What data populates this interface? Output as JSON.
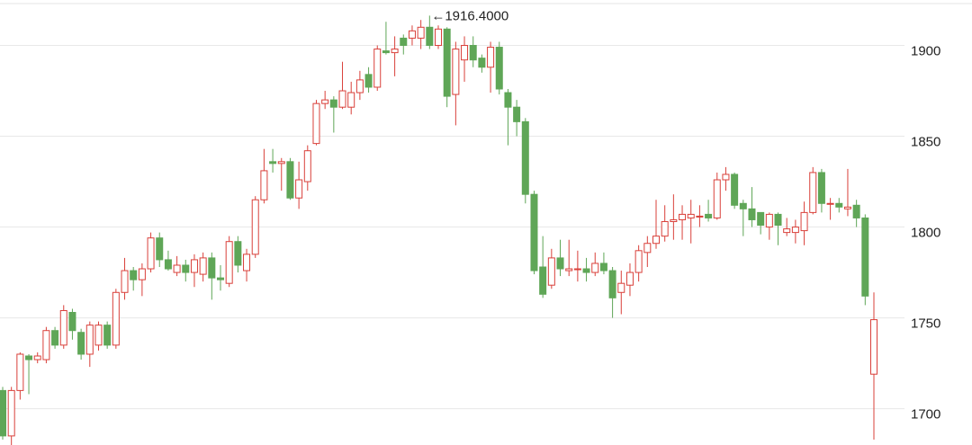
{
  "chart_data": {
    "type": "candlestick",
    "annotation": "←1916.4000",
    "up_color": "#d9403a",
    "down_color": "#5fa657",
    "ylim": [
      1680,
      1925
    ],
    "yticks": [
      1700,
      1750,
      1800,
      1850,
      1900
    ],
    "grid": true,
    "open": [
      1710,
      1685,
      1710,
      1729,
      1727,
      1727,
      1743,
      1735,
      1753,
      1742,
      1730,
      1735,
      1746,
      1735,
      1764,
      1776,
      1771,
      1777,
      1794,
      1782,
      1775,
      1779,
      1775,
      1774,
      1783,
      1772,
      1769,
      1792,
      1776,
      1785,
      1815,
      1836,
      1835,
      1836,
      1816,
      1825,
      1846,
      1868,
      1870,
      1866,
      1866,
      1874,
      1884,
      1877,
      1897,
      1896,
      1904,
      1904,
      1904,
      1910,
      1900,
      1909,
      1873,
      1892,
      1900,
      1893,
      1888,
      1899,
      1874,
      1866,
      1858,
      1818,
      1778,
      1768,
      1783,
      1776,
      1777,
      1777,
      1775,
      1780,
      1776,
      1764,
      1768,
      1775,
      1786,
      1791,
      1795,
      1803,
      1804,
      1805,
      1806,
      1807,
      1805,
      1826,
      1829,
      1813,
      1810,
      1808,
      1800,
      1807,
      1797,
      1797,
      1798,
      1808,
      1830,
      1813,
      1813,
      1810,
      1812,
      1805,
      1719
    ],
    "high": [
      1712,
      1712,
      1731,
      1730,
      1731,
      1745,
      1745,
      1757,
      1755,
      1744,
      1748,
      1748,
      1748,
      1766,
      1783,
      1778,
      1780,
      1797,
      1797,
      1787,
      1784,
      1782,
      1785,
      1786,
      1786,
      1779,
      1795,
      1795,
      1788,
      1817,
      1843,
      1843,
      1838,
      1838,
      1836,
      1845,
      1870,
      1875,
      1872,
      1891,
      1880,
      1886,
      1888,
      1900,
      1913,
      1905,
      1906,
      1911,
      1914,
      1916.4,
      1911,
      1910,
      1902,
      1905,
      1905,
      1895,
      1902,
      1902,
      1876,
      1870,
      1860,
      1820,
      1795,
      1788,
      1793,
      1793,
      1787,
      1783,
      1786,
      1786,
      1778,
      1776,
      1780,
      1790,
      1795,
      1815,
      1812,
      1818,
      1812,
      1815,
      1812,
      1815,
      1830,
      1833,
      1830,
      1815,
      1822,
      1808,
      1808,
      1808,
      1805,
      1804,
      1814,
      1833,
      1832,
      1816,
      1816,
      1832,
      1815,
      1807,
      1764
    ],
    "low": [
      1683,
      1680,
      1705,
      1708,
      1725,
      1725,
      1733,
      1733,
      1738,
      1727,
      1723,
      1732,
      1733,
      1733,
      1760,
      1765,
      1762,
      1775,
      1778,
      1776,
      1773,
      1770,
      1767,
      1770,
      1760,
      1765,
      1767,
      1775,
      1770,
      1783,
      1813,
      1830,
      1820,
      1815,
      1810,
      1820,
      1845,
      1865,
      1852,
      1865,
      1862,
      1870,
      1874,
      1875,
      1895,
      1883,
      1895,
      1900,
      1898,
      1898,
      1898,
      1866,
      1856,
      1880,
      1888,
      1885,
      1874,
      1873,
      1845,
      1850,
      1813,
      1774,
      1761,
      1766,
      1773,
      1773,
      1770,
      1770,
      1773,
      1774,
      1750,
      1752,
      1762,
      1770,
      1778,
      1788,
      1792,
      1793,
      1793,
      1791,
      1800,
      1803,
      1804,
      1820,
      1810,
      1795,
      1800,
      1796,
      1793,
      1790,
      1795,
      1791,
      1790,
      1807,
      1808,
      1804,
      1808,
      1806,
      1800,
      1757,
      1683
    ],
    "close": [
      1685,
      1710,
      1730,
      1727,
      1729,
      1743,
      1735,
      1754,
      1743,
      1730,
      1746,
      1746,
      1735,
      1764,
      1776,
      1771,
      1777,
      1794,
      1782,
      1777,
      1779,
      1775,
      1782,
      1783,
      1772,
      1771,
      1792,
      1779,
      1785,
      1815,
      1831,
      1835,
      1836,
      1816,
      1826,
      1842,
      1868,
      1870,
      1866,
      1875,
      1874,
      1881,
      1877,
      1898,
      1896,
      1898,
      1900,
      1908,
      1910,
      1900,
      1909,
      1872,
      1898,
      1900,
      1892,
      1888,
      1899,
      1876,
      1866,
      1858,
      1818,
      1776,
      1763,
      1783,
      1777,
      1777,
      1777,
      1775,
      1780,
      1776,
      1761,
      1769,
      1775,
      1787,
      1791,
      1795,
      1803,
      1804,
      1807,
      1807,
      1806,
      1805,
      1826,
      1829,
      1812,
      1810,
      1804,
      1801,
      1807,
      1801,
      1799,
      1800,
      1808,
      1830,
      1813,
      1813,
      1811,
      1811,
      1805,
      1762,
      1749
    ]
  }
}
